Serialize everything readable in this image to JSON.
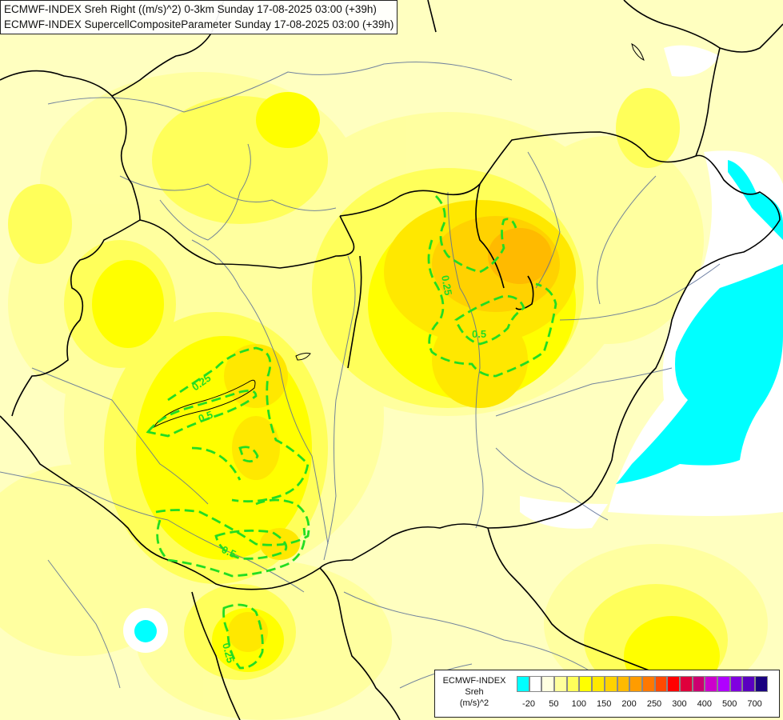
{
  "header": {
    "line1": "ECMWF-INDEX Sreh Right ((m/s)^2) 0-3km Sunday 17-08-2025 03:00 (+39h)",
    "line2": "ECMWF-INDEX SupercellCompositeParameter Sunday 17-08-2025 03:00 (+39h)"
  },
  "legend": {
    "line1": "ECMWF-INDEX",
    "line2": "Sreh",
    "line3": "(m/s)^2",
    "colors": [
      "#00ffff",
      "#ffffff",
      "#ffffe0",
      "#ffff9c",
      "#ffff5a",
      "#ffff00",
      "#ffe800",
      "#ffd200",
      "#ffba00",
      "#ff9c00",
      "#ff7800",
      "#ff4a00",
      "#ff0000",
      "#e0003c",
      "#cc0070",
      "#cc00cc",
      "#b000ff",
      "#8000e0",
      "#5a00c0",
      "#1a0080"
    ],
    "ticks": [
      "-20",
      "50",
      "100",
      "150",
      "200",
      "250",
      "300",
      "400",
      "500",
      "700"
    ]
  },
  "contour_labels": [
    "0.25",
    "0.5",
    "0.25",
    "0.5",
    "0.5",
    "0.25"
  ],
  "colors": {
    "contour": "#22dd22",
    "border": "#000000",
    "river": "#5a6e96",
    "high_sreh": "#00ffff"
  }
}
